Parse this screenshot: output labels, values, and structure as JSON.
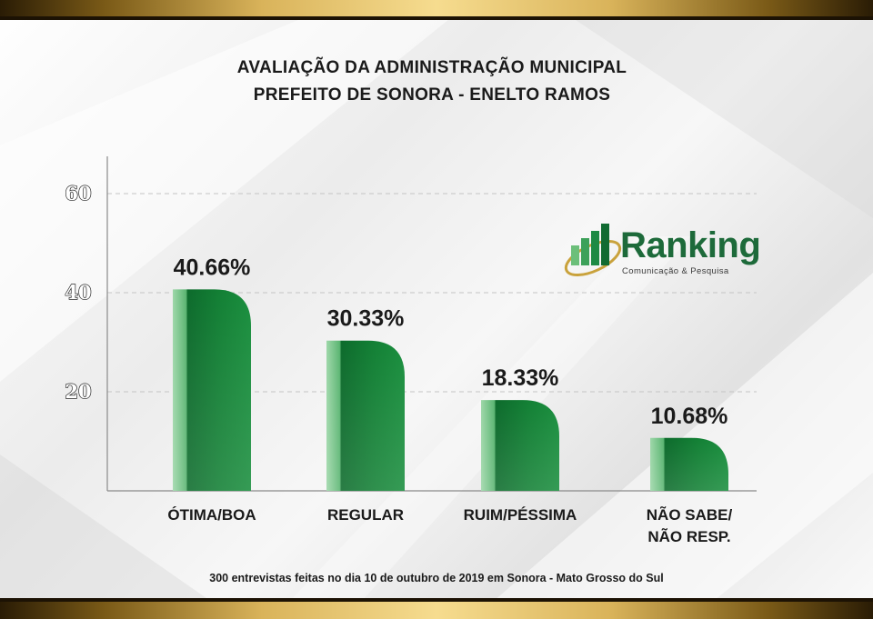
{
  "header": {
    "title_line1": "AVALIAÇÃO DA ADMINISTRAÇÃO MUNICIPAL",
    "title_line2": "PREFEITO DE SONORA - ENELTO RAMOS"
  },
  "logo": {
    "name": "Ranking",
    "tagline": "Comunicação & Pesquisa"
  },
  "footnote": "300 entrevistas feitas no dia 10 de outubro de 2019 em Sonora - Mato Grosso do Sul",
  "colors": {
    "bar_dark": "#0d6b2c",
    "bar_mid": "#17893b",
    "bar_light": "#9ed7a9",
    "brand_green": "#1d6a3a",
    "gold": "#d9b35a",
    "grid": "#c8c8c8",
    "text": "#1a1a1a"
  },
  "chart_data": {
    "type": "bar",
    "title": "AVALIAÇÃO DA ADMINISTRAÇÃO MUNICIPAL\nPREFEITO DE SONORA - ENELTO RAMOS",
    "categories": [
      [
        "ÓTIMA/BOA"
      ],
      [
        "REGULAR"
      ],
      [
        "RUIM/PÉSSIMA"
      ],
      [
        "NÃO SABE/",
        "NÃO RESP."
      ]
    ],
    "values": [
      40.66,
      30.33,
      18.33,
      10.68
    ],
    "value_labels": [
      "40.66%",
      "30.33%",
      "18.33%",
      "10.68%"
    ],
    "yticks": [
      20,
      40,
      60
    ],
    "ylim": [
      0,
      70
    ],
    "grid": true,
    "xlabel": "",
    "ylabel": ""
  }
}
